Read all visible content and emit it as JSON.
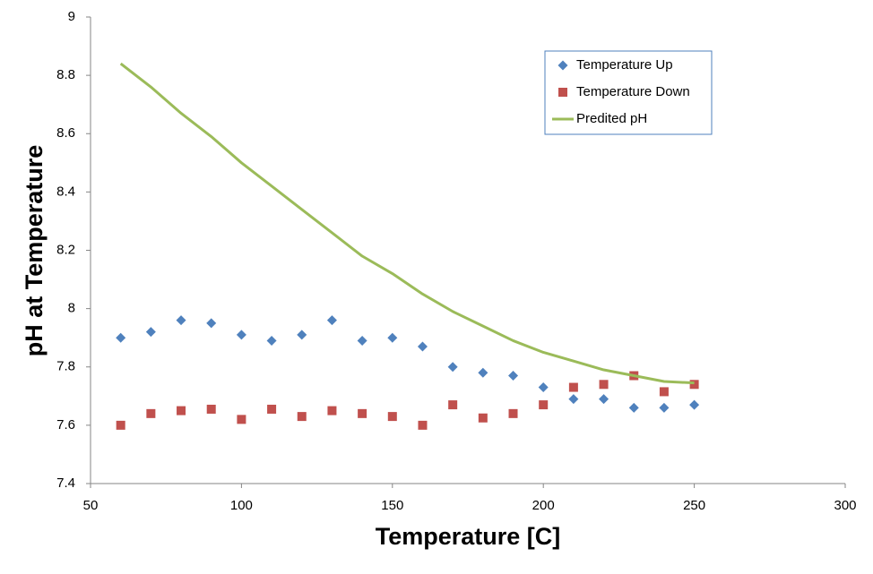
{
  "chart_data": {
    "type": "scatter",
    "x_label": "Temperature [C]",
    "y_label": "pH at Temperature",
    "x": [
      60,
      70,
      80,
      90,
      100,
      110,
      120,
      130,
      140,
      150,
      160,
      170,
      180,
      190,
      200,
      210,
      220,
      230,
      240,
      250
    ],
    "series": [
      {
        "name": "Temperature Up",
        "color": "#4f81bd",
        "type": "scatter",
        "marker": "diamond",
        "values": [
          7.9,
          7.92,
          7.96,
          7.95,
          7.91,
          7.89,
          7.91,
          7.96,
          7.89,
          7.9,
          7.87,
          7.8,
          7.78,
          7.77,
          7.73,
          7.69,
          7.69,
          7.66,
          7.66,
          7.67
        ]
      },
      {
        "name": "Temperature Down",
        "color": "#c0504d",
        "type": "scatter",
        "marker": "square",
        "values": [
          7.6,
          7.64,
          7.65,
          7.655,
          7.62,
          7.655,
          7.63,
          7.65,
          7.64,
          7.63,
          7.6,
          7.67,
          7.625,
          7.64,
          7.67,
          7.73,
          7.74,
          7.77,
          7.715,
          7.74
        ]
      },
      {
        "name": "Predited pH",
        "color": "#9bbb59",
        "type": "line",
        "values": [
          8.84,
          8.76,
          8.67,
          8.59,
          8.5,
          8.42,
          8.34,
          8.26,
          8.18,
          8.12,
          8.05,
          7.99,
          7.94,
          7.89,
          7.85,
          7.82,
          7.79,
          7.77,
          7.75,
          7.745
        ]
      }
    ],
    "xlim": [
      50,
      300
    ],
    "xticks": [
      50,
      100,
      150,
      200,
      250,
      300
    ],
    "ylim": [
      7.4,
      9
    ],
    "yticks": [
      7.4,
      7.6,
      7.8,
      8,
      8.2,
      8.4,
      8.6,
      8.8,
      9
    ],
    "grid": false,
    "legend": "upper right"
  }
}
